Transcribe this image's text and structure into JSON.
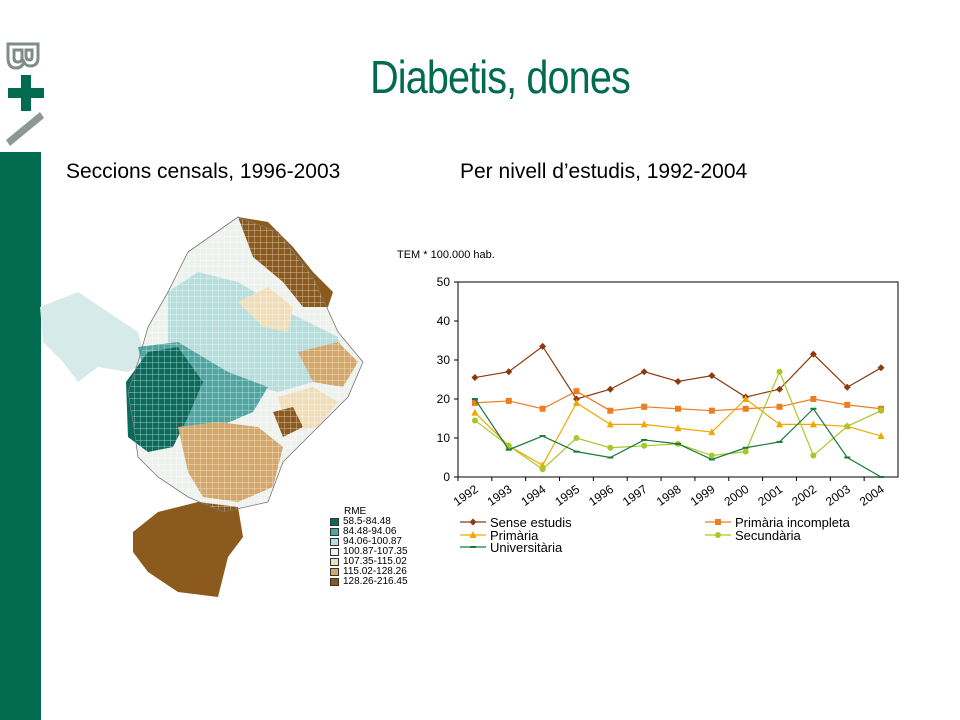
{
  "title": "Diabetis, dones",
  "subtitle_left": "Seccions censals, 1996-2003",
  "subtitle_right": "Per nivell d’estudis, 1992-2004",
  "colors": {
    "brand_green": "#006b4f"
  },
  "map_legend": {
    "title": "RME",
    "items": [
      {
        "label": "58.5-84.48",
        "color": "#0a6b5c"
      },
      {
        "label": "84.48-94.06",
        "color": "#4fa5a2"
      },
      {
        "label": "94.06-100.87",
        "color": "#b7dedc"
      },
      {
        "label": "100.87-107.35",
        "color": "#eef2ee"
      },
      {
        "label": "107.35-115.02",
        "color": "#f0deba"
      },
      {
        "label": "115.02-128.26",
        "color": "#d3a86a"
      },
      {
        "label": "128.26-216.45",
        "color": "#8b5a1c"
      }
    ]
  },
  "chart_data": {
    "type": "line",
    "ylabel": "TEM * 100.000 hab.",
    "ylim": [
      0,
      50
    ],
    "yticks": [
      0,
      10,
      20,
      30,
      40,
      50
    ],
    "categories": [
      "1992",
      "1993",
      "1994",
      "1995",
      "1996",
      "1997",
      "1998",
      "1999",
      "2000",
      "2001",
      "2002",
      "2003",
      "2004"
    ],
    "legend_position": "bottom",
    "series": [
      {
        "name": "Sense estudis",
        "color": "#8b3a0e",
        "marker": "diamond",
        "values": [
          25.5,
          27,
          33.5,
          20,
          22.5,
          27,
          24.5,
          26,
          20.5,
          22.5,
          31.5,
          23,
          28
        ]
      },
      {
        "name": "Primària incompleta",
        "color": "#ed7d22",
        "marker": "square",
        "values": [
          19,
          19.5,
          17.5,
          22,
          17,
          18,
          17.5,
          17,
          17.5,
          18,
          20,
          18.5,
          17.5
        ]
      },
      {
        "name": "Primària",
        "color": "#f0a800",
        "marker": "triangle",
        "values": [
          16.5,
          8,
          3,
          19,
          13.5,
          13.5,
          12.5,
          11.5,
          20,
          13.5,
          13.5,
          13,
          10.5
        ]
      },
      {
        "name": "Secundària",
        "color": "#a8c82a",
        "marker": "circle",
        "values": [
          14.5,
          8,
          2,
          10,
          7.5,
          8,
          8.5,
          5.5,
          6.5,
          27,
          5.5,
          13,
          17
        ]
      },
      {
        "name": "Universitària",
        "color": "#1a7a3a",
        "marker": "dash",
        "values": [
          20,
          7,
          10.5,
          6.5,
          5,
          9.5,
          8.5,
          4.5,
          7.5,
          9,
          17.5,
          5,
          0
        ]
      }
    ]
  }
}
